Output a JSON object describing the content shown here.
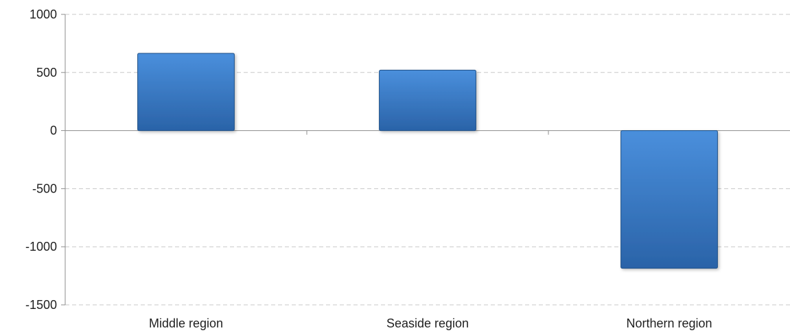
{
  "chart_data": {
    "type": "bar",
    "categories": [
      "Middle region",
      "Seaside region",
      "Northern region"
    ],
    "values": [
      665,
      520,
      -1185
    ],
    "ylim": [
      -1500,
      1000
    ],
    "yticks": [
      1000,
      500,
      0,
      -500,
      -1000,
      -1500
    ],
    "grid": true,
    "grid_style": "dashed",
    "legend": "none",
    "colors": {
      "bar_top": "#4a8fdc",
      "bar_bottom": "#2a63a8",
      "bar_edge": "#1f4f86",
      "grid": "#c8c8c8",
      "axis": "#8c8c8c"
    }
  }
}
